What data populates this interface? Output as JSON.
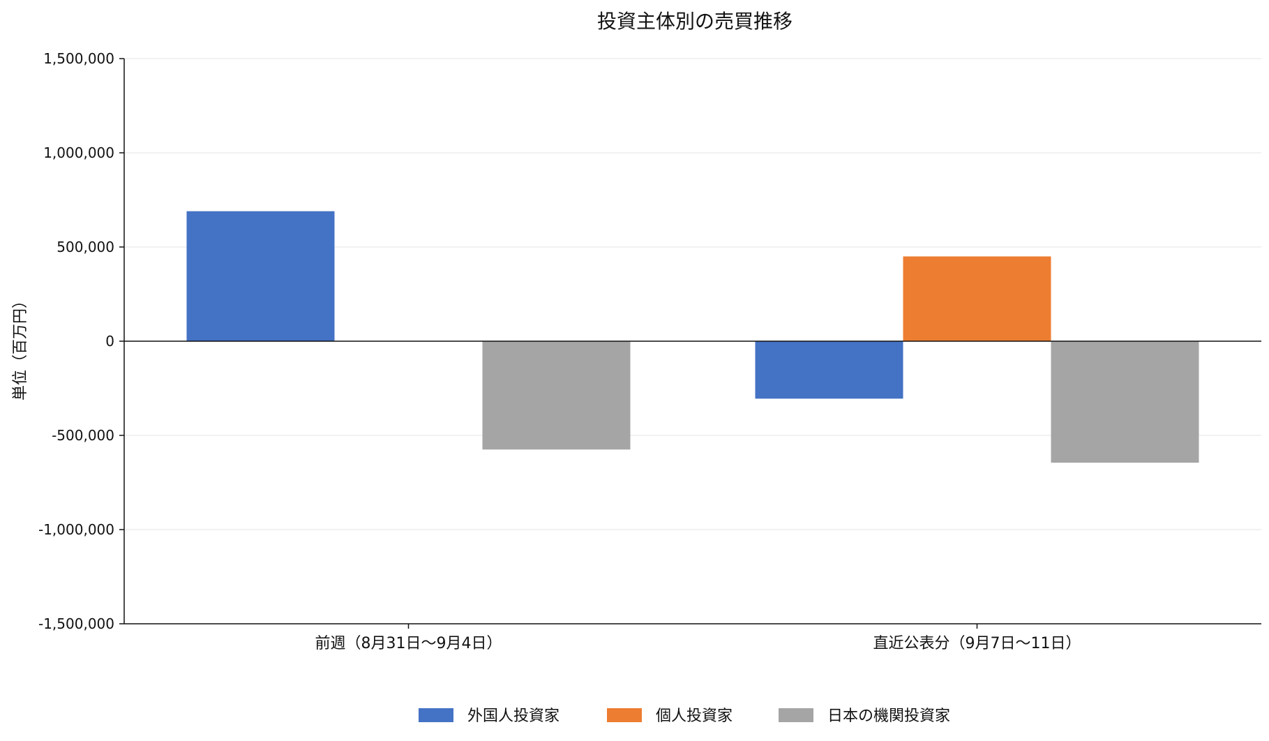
{
  "chart_data": {
    "type": "bar",
    "title": "投資主体別の売買推移",
    "ylabel": "単位（百万円）",
    "xlabel": "",
    "categories": [
      "前週（8月31日～9月4日）",
      "直近公表分（9月7日～11日）"
    ],
    "series": [
      {
        "name": "外国人投資家",
        "color": "#4472c4",
        "values": [
          690000,
          -305000
        ]
      },
      {
        "name": "個人投資家",
        "color": "#ed7d31",
        "values": [
          0,
          450000
        ]
      },
      {
        "name": "日本の機関投資家",
        "color": "#a5a5a5",
        "values": [
          -575000,
          -645000
        ]
      }
    ],
    "ylim": [
      -1500000,
      1500000
    ],
    "yticks": [
      -1500000,
      -1000000,
      -500000,
      0,
      500000,
      1000000,
      1500000
    ],
    "ytick_labels": [
      "-1,500,000",
      "-1,000,000",
      "-500,000",
      "0",
      "500,000",
      "1,000,000",
      "1,500,000"
    ],
    "grid": true,
    "legend_position": "bottom-center"
  }
}
